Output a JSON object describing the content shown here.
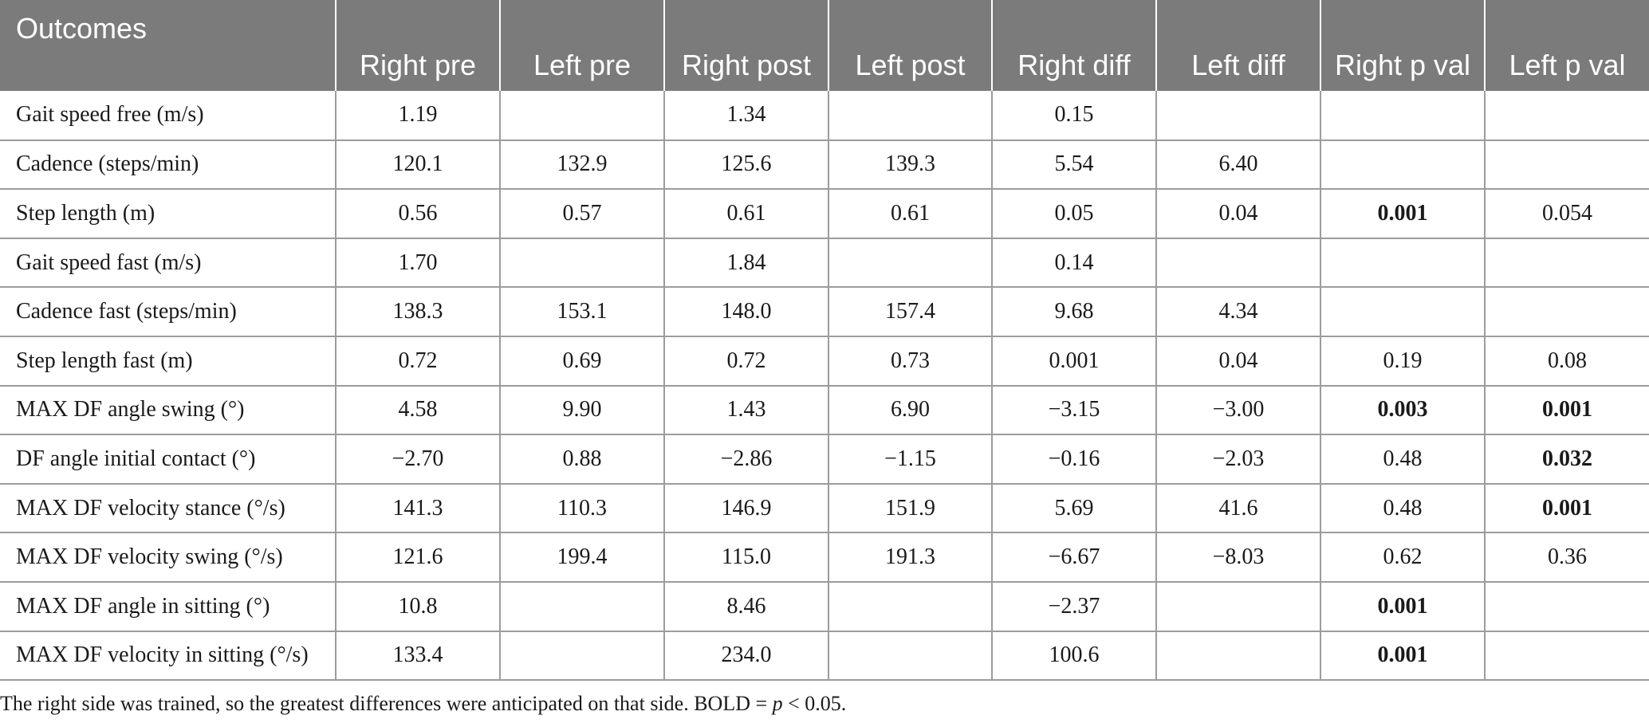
{
  "table": {
    "headers": [
      "Outcomes",
      "Right pre",
      "Left pre",
      "Right post",
      "Left post",
      "Right diff",
      "Left diff",
      "Right p val",
      "Left p val"
    ],
    "rows": [
      {
        "cells": [
          "Gait speed free (m/s)",
          "1.19",
          "",
          "1.34",
          "",
          "0.15",
          "",
          "",
          ""
        ],
        "bold": [
          false,
          false,
          false,
          false,
          false,
          false,
          false,
          false,
          false
        ]
      },
      {
        "cells": [
          "Cadence (steps/min)",
          "120.1",
          "132.9",
          "125.6",
          "139.3",
          "5.54",
          "6.40",
          "",
          ""
        ],
        "bold": [
          false,
          false,
          false,
          false,
          false,
          false,
          false,
          false,
          false
        ]
      },
      {
        "cells": [
          "Step length (m)",
          "0.56",
          "0.57",
          "0.61",
          "0.61",
          "0.05",
          "0.04",
          "0.001",
          "0.054"
        ],
        "bold": [
          false,
          false,
          false,
          false,
          false,
          false,
          false,
          true,
          false
        ]
      },
      {
        "cells": [
          "Gait speed fast (m/s)",
          "1.70",
          "",
          "1.84",
          "",
          "0.14",
          "",
          "",
          ""
        ],
        "bold": [
          false,
          false,
          false,
          false,
          false,
          false,
          false,
          false,
          false
        ]
      },
      {
        "cells": [
          "Cadence fast (steps/min)",
          "138.3",
          "153.1",
          "148.0",
          "157.4",
          "9.68",
          "4.34",
          "",
          ""
        ],
        "bold": [
          false,
          false,
          false,
          false,
          false,
          false,
          false,
          false,
          false
        ]
      },
      {
        "cells": [
          "Step length fast (m)",
          "0.72",
          "0.69",
          "0.72",
          "0.73",
          "0.001",
          "0.04",
          "0.19",
          "0.08"
        ],
        "bold": [
          false,
          false,
          false,
          false,
          false,
          false,
          false,
          false,
          false
        ]
      },
      {
        "cells": [
          "MAX DF angle swing (°)",
          "4.58",
          "9.90",
          "1.43",
          "6.90",
          "−3.15",
          "−3.00",
          "0.003",
          "0.001"
        ],
        "bold": [
          false,
          false,
          false,
          false,
          false,
          false,
          false,
          true,
          true
        ]
      },
      {
        "cells": [
          "DF angle initial contact (°)",
          "−2.70",
          "0.88",
          "−2.86",
          "−1.15",
          "−0.16",
          "−2.03",
          "0.48",
          "0.032"
        ],
        "bold": [
          false,
          false,
          false,
          false,
          false,
          false,
          false,
          false,
          true
        ]
      },
      {
        "cells": [
          "MAX DF velocity stance (°/s)",
          "141.3",
          "110.3",
          "146.9",
          "151.9",
          "5.69",
          "41.6",
          "0.48",
          "0.001"
        ],
        "bold": [
          false,
          false,
          false,
          false,
          false,
          false,
          false,
          false,
          true
        ]
      },
      {
        "cells": [
          "MAX DF velocity swing (°/s)",
          "121.6",
          "199.4",
          "115.0",
          "191.3",
          "−6.67",
          "−8.03",
          "0.62",
          "0.36"
        ],
        "bold": [
          false,
          false,
          false,
          false,
          false,
          false,
          false,
          false,
          false
        ]
      },
      {
        "cells": [
          "MAX DF angle in sitting (°)",
          "10.8",
          "",
          "8.46",
          "",
          "−2.37",
          "",
          "0.001",
          ""
        ],
        "bold": [
          false,
          false,
          false,
          false,
          false,
          false,
          false,
          true,
          false
        ]
      },
      {
        "cells": [
          "MAX DF velocity in sitting (°/s)",
          "133.4",
          "",
          "234.0",
          "",
          "100.6",
          "",
          "0.001",
          ""
        ],
        "bold": [
          false,
          false,
          false,
          false,
          false,
          false,
          false,
          true,
          false
        ]
      }
    ]
  },
  "footnote": {
    "text_before": "The right side was trained, so the greatest differences were anticipated on that side. BOLD = ",
    "p_symbol": "p",
    "text_after": " < 0.05."
  },
  "colors": {
    "header_bg": "#7a7b7a",
    "header_text": "#ffffff",
    "grid_lines": "#9c9c9c",
    "body_text": "#1a1a1a"
  }
}
